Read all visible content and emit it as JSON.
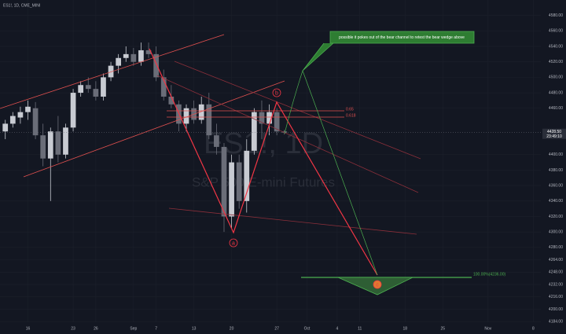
{
  "chart_data": {
    "type": "candlestick",
    "symbol": "ES1!, 1D, CME_MINI",
    "watermark": "ES1!, 1D",
    "watermark_subtitle": "S&P 500 E-mini Futures",
    "annotation": "possible it pokes out of the bear channel to retest the bear wedge above",
    "wave_labels": [
      "a",
      "b",
      "c"
    ],
    "fib_levels": [
      0.65,
      0.618
    ],
    "target_label": "100.00%(4236.00)",
    "last_price": {
      "value": 4428.5,
      "label": "4428.50"
    },
    "countdown": "23:49:10",
    "up_color": "#c8cbd2",
    "down_color": "#6a6d78",
    "xlim": [
      -0.7,
      71
    ],
    "xticks": [
      {
        "value": 3,
        "label": "16"
      },
      {
        "value": 9,
        "label": "23"
      },
      {
        "value": 12,
        "label": "26"
      },
      {
        "value": 17,
        "label": "Sep"
      },
      {
        "value": 20,
        "label": "7"
      },
      {
        "value": 25,
        "label": "13"
      },
      {
        "value": 30,
        "label": "20"
      },
      {
        "value": 36,
        "label": "27"
      },
      {
        "value": 40,
        "label": "Oct"
      },
      {
        "value": 44,
        "label": "4"
      },
      {
        "value": 47,
        "label": "11"
      },
      {
        "value": 53,
        "label": "18"
      },
      {
        "value": 58,
        "label": "25"
      },
      {
        "value": 64,
        "label": "Nov"
      },
      {
        "value": 70,
        "label": "8"
      }
    ],
    "ylim": [
      4168,
      4600
    ],
    "yticks": [
      {
        "value": 4184,
        "label": "4184.00"
      },
      {
        "value": 4200,
        "label": "4200.00"
      },
      {
        "value": 4216,
        "label": "4216.00"
      },
      {
        "value": 4232,
        "label": "4232.00"
      },
      {
        "value": 4248,
        "label": "4248.00"
      },
      {
        "value": 4264,
        "label": "4264.00"
      },
      {
        "value": 4280,
        "label": "4280.00"
      },
      {
        "value": 4300,
        "label": "4300.00"
      },
      {
        "value": 4320,
        "label": "4320.00"
      },
      {
        "value": 4340,
        "label": "4340.00"
      },
      {
        "value": 4360,
        "label": "4360.00"
      },
      {
        "value": 4380,
        "label": "4380.00"
      },
      {
        "value": 4400,
        "label": "4400.00"
      },
      {
        "value": 4460,
        "label": "4460.00"
      },
      {
        "value": 4480,
        "label": "4480.00"
      },
      {
        "value": 4500,
        "label": "4500.00"
      },
      {
        "value": 4520,
        "label": "4520.00"
      },
      {
        "value": 4540,
        "label": "4540.00"
      },
      {
        "value": 4560,
        "label": "4560.00"
      },
      {
        "value": 4580,
        "label": "4580.00"
      }
    ],
    "x": [
      0,
      1,
      2,
      3,
      4,
      5,
      6,
      7,
      8,
      9,
      10,
      11,
      12,
      13,
      14,
      15,
      16,
      17,
      18,
      19,
      20,
      21,
      22,
      23,
      24,
      25,
      26,
      27,
      28,
      29,
      30,
      31,
      32,
      33,
      34,
      35,
      36,
      37
    ],
    "open": [
      4430,
      4440,
      4448,
      4455,
      4460,
      4425,
      4395,
      4430,
      4400,
      4435,
      4480,
      4490,
      4485,
      4475,
      4500,
      4515,
      4525,
      4530,
      4520,
      4535,
      4530,
      4500,
      4475,
      4465,
      4440,
      4460,
      4445,
      4465,
      4425,
      4410,
      4320,
      4390,
      4340,
      4405,
      4455,
      4440,
      4455,
      4430
    ],
    "high": [
      4445,
      4455,
      4462,
      4470,
      4468,
      4440,
      4435,
      4450,
      4440,
      4485,
      4495,
      4500,
      4495,
      4505,
      4520,
      4530,
      4540,
      4538,
      4545,
      4545,
      4540,
      4510,
      4490,
      4470,
      4465,
      4470,
      4475,
      4480,
      4440,
      4415,
      4400,
      4400,
      4420,
      4460,
      4470,
      4465,
      4460,
      4432
    ],
    "low": [
      4420,
      4435,
      4440,
      4445,
      4420,
      4385,
      4340,
      4390,
      4395,
      4430,
      4475,
      4480,
      4470,
      4470,
      4495,
      4505,
      4520,
      4515,
      4515,
      4525,
      4495,
      4470,
      4460,
      4430,
      4430,
      4440,
      4440,
      4420,
      4400,
      4300,
      4305,
      4330,
      4325,
      4400,
      4420,
      4425,
      4425,
      4426
    ],
    "close": [
      4440,
      4450,
      4455,
      4462,
      4425,
      4395,
      4430,
      4400,
      4435,
      4480,
      4490,
      4485,
      4475,
      4500,
      4515,
      4525,
      4530,
      4520,
      4535,
      4530,
      4500,
      4475,
      4465,
      4440,
      4460,
      4445,
      4465,
      4425,
      4410,
      4320,
      4390,
      4340,
      4405,
      4455,
      4440,
      4455,
      4430,
      4428.5
    ]
  }
}
